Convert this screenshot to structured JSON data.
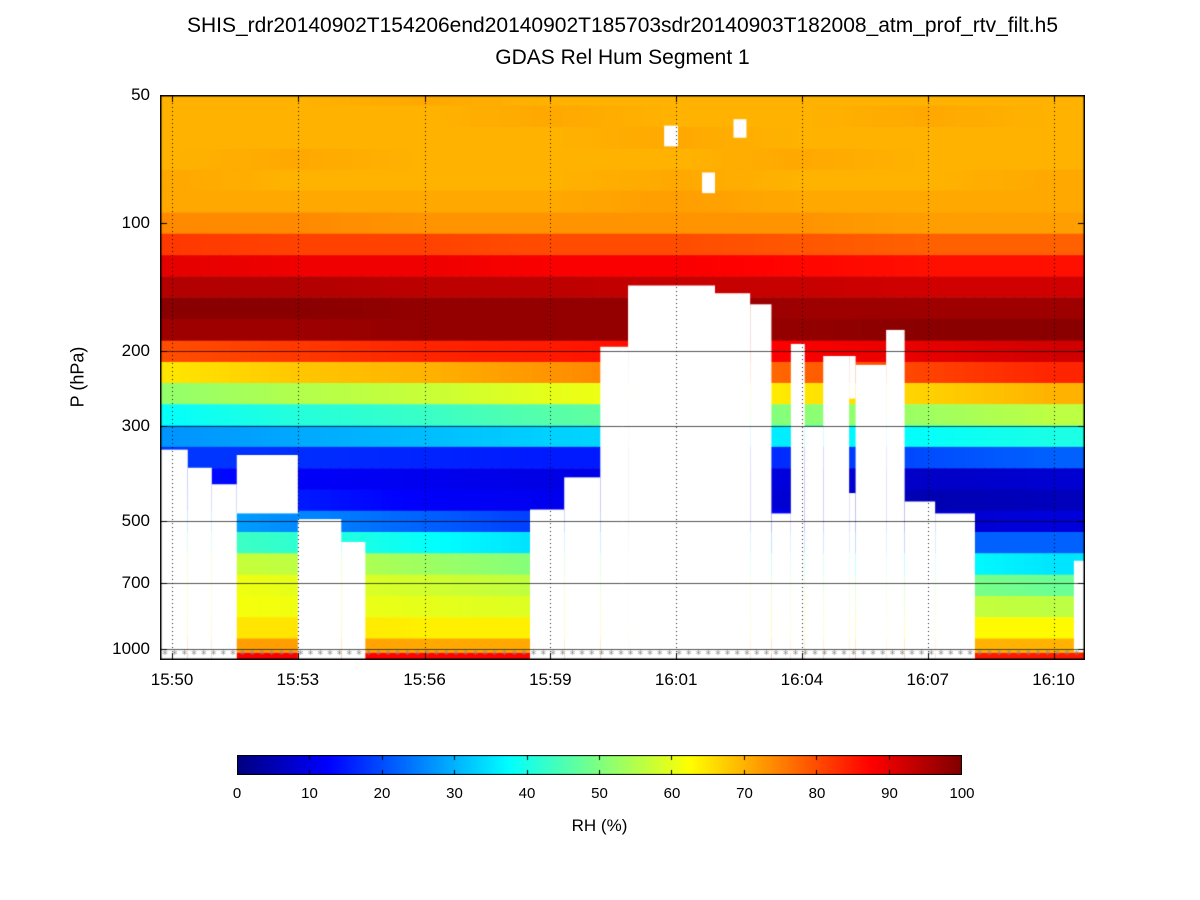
{
  "figure": {
    "title_line1": "SHIS_rdr20140902T154206end20140902T185703sdr20140903T182008_atm_prof_rtv_filt.h5",
    "title_line2": "GDAS Rel Hum Segment 1"
  },
  "axes": {
    "ylabel": "P (hPa)",
    "y_scale": "log"
  },
  "colorbar": {
    "label": "RH (%)",
    "ticks": [
      0,
      10,
      20,
      30,
      40,
      50,
      60,
      70,
      80,
      90,
      100
    ],
    "min": 0,
    "max": 100,
    "colormap": "jet"
  },
  "chart_data": {
    "type": "heatmap",
    "title": "GDAS Rel Hum Segment 1",
    "xlabel": "",
    "ylabel": "P (hPa)",
    "y_range": [
      50,
      1060
    ],
    "y_ticks": [
      50,
      100,
      200,
      300,
      500,
      700,
      1000
    ],
    "grid_pressures": [
      200,
      300,
      500,
      700,
      1000
    ],
    "x_tick_labels": [
      "15:50",
      "15:53",
      "15:56",
      "15:59",
      "16:01",
      "16:04",
      "16:07",
      "16:10"
    ],
    "time_fractions": [
      0.013,
      0.149,
      0.286,
      0.422,
      0.558,
      0.694,
      0.83,
      0.966
    ],
    "pressures": [
      50,
      56,
      63,
      71,
      79,
      89,
      100,
      112,
      126,
      141,
      158,
      178,
      200,
      224,
      251,
      282,
      316,
      355,
      398,
      447,
      501,
      562,
      631,
      708,
      794,
      891,
      1000,
      1040
    ],
    "profiles": [
      {
        "time": "15:50",
        "rh": [
          70,
          70,
          70,
          70,
          71,
          71,
          74,
          82,
          90,
          95,
          99,
          97,
          80,
          65,
          52,
          38,
          27,
          18,
          14,
          18,
          30,
          45,
          58,
          62,
          62,
          65,
          72,
          88
        ]
      },
      {
        "time": "15:53",
        "rh": [
          70,
          70,
          70,
          71,
          70,
          71,
          74,
          81,
          89,
          95,
          99,
          97,
          82,
          68,
          55,
          41,
          29,
          17,
          12,
          15,
          26,
          42,
          56,
          60,
          61,
          65,
          72,
          88
        ]
      },
      {
        "time": "15:56",
        "rh": [
          71,
          70,
          70,
          70,
          70,
          71,
          73,
          81,
          89,
          94,
          98,
          98,
          84,
          70,
          57,
          43,
          31,
          16,
          11,
          12,
          22,
          38,
          53,
          58,
          60,
          64,
          71,
          87
        ]
      },
      {
        "time": "15:59",
        "rh": [
          70,
          71,
          70,
          70,
          70,
          71,
          73,
          80,
          88,
          94,
          98,
          98,
          85,
          73,
          60,
          46,
          33,
          15,
          10,
          11,
          18,
          34,
          50,
          56,
          59,
          64,
          71,
          87
        ]
      },
      {
        "time": "16:01",
        "rh": [
          70,
          70,
          71,
          70,
          71,
          72,
          73,
          80,
          88,
          93,
          98,
          98,
          87,
          76,
          62,
          48,
          34,
          15,
          10,
          10,
          15,
          30,
          46,
          54,
          58,
          64,
          71,
          86
        ]
      },
      {
        "time": "16:04",
        "rh": [
          70,
          70,
          70,
          71,
          70,
          71,
          73,
          79,
          87,
          93,
          97,
          98,
          88,
          78,
          65,
          51,
          36,
          17,
          9,
          8,
          12,
          26,
          42,
          52,
          57,
          63,
          70,
          86
        ]
      },
      {
        "time": "16:07",
        "rh": [
          70,
          71,
          70,
          70,
          70,
          71,
          72,
          78,
          86,
          92,
          97,
          99,
          90,
          81,
          67,
          53,
          38,
          20,
          7,
          5,
          8,
          22,
          38,
          50,
          57,
          63,
          70,
          85
        ]
      },
      {
        "time": "16:10",
        "rh": [
          70,
          70,
          70,
          70,
          71,
          71,
          72,
          78,
          86,
          92,
          97,
          99,
          92,
          84,
          70,
          56,
          40,
          22,
          8,
          6,
          9,
          22,
          35,
          48,
          56,
          63,
          70,
          85
        ]
      }
    ],
    "nan_regions": [
      [
        0.0,
        0.03,
        340,
        1060
      ],
      [
        0.03,
        0.056,
        375,
        1060
      ],
      [
        0.056,
        0.083,
        410,
        1060
      ],
      [
        0.083,
        0.149,
        350,
        480
      ],
      [
        0.149,
        0.196,
        495,
        1060
      ],
      [
        0.196,
        0.222,
        560,
        1060
      ],
      [
        0.4,
        0.437,
        470,
        1060
      ],
      [
        0.437,
        0.476,
        395,
        1060
      ],
      [
        0.476,
        0.506,
        195,
        1060
      ],
      [
        0.506,
        0.6,
        140,
        1060
      ],
      [
        0.6,
        0.638,
        146,
        1060
      ],
      [
        0.638,
        0.661,
        155,
        1060
      ],
      [
        0.661,
        0.682,
        480,
        1060
      ],
      [
        0.682,
        0.697,
        192,
        1060
      ],
      [
        0.697,
        0.717,
        300,
        1060
      ],
      [
        0.717,
        0.745,
        205,
        1060
      ],
      [
        0.745,
        0.752,
        205,
        258
      ],
      [
        0.745,
        0.752,
        430,
        1060
      ],
      [
        0.752,
        0.785,
        215,
        1060
      ],
      [
        0.785,
        0.805,
        178,
        1060
      ],
      [
        0.805,
        0.838,
        450,
        1060
      ],
      [
        0.838,
        0.881,
        480,
        1060
      ],
      [
        0.988,
        1.0,
        620,
        1015
      ],
      [
        0.545,
        0.56,
        59,
        66
      ],
      [
        0.586,
        0.6,
        76,
        85
      ],
      [
        0.62,
        0.634,
        57,
        63
      ]
    ],
    "surface_markers": {
      "pressure": 1020,
      "symbol": "*",
      "color": "#8c8c8c"
    },
    "n_time_columns": 92,
    "legend_position": "bottom-colorbar",
    "grid": true
  }
}
